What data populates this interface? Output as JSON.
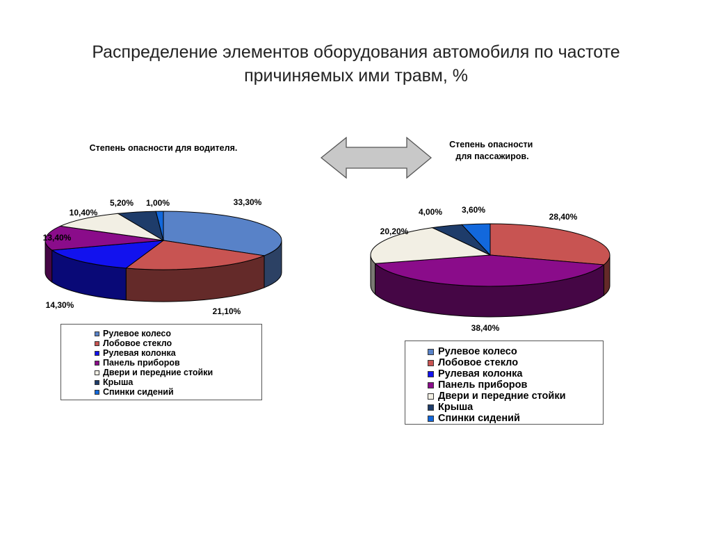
{
  "slide": {
    "title_line1": "Распределение элементов оборудования автомобиля по частоте",
    "title_line2": "причиняемых ими травм, %"
  },
  "chart_data": [
    {
      "type": "pie",
      "title": "Степень опасности для водителя.",
      "categories": [
        "Рулевое колесо",
        "Лобовое стекло",
        "Рулевая колонка",
        "Панель приборов",
        "Двери и передние стойки",
        "Крыша",
        "Спинки сидений"
      ],
      "values": [
        33.3,
        21.1,
        14.3,
        13.4,
        10.4,
        5.2,
        1.0
      ],
      "value_labels": [
        "33,30%",
        "21,10%",
        "14,30%",
        "13,40%",
        "10,40%",
        "5,20%",
        "1,00%"
      ],
      "colors": [
        "#5882c8",
        "#c85452",
        "#1212ee",
        "#8a0c8a",
        "#f2efe4",
        "#1e3c6a",
        "#1268dc"
      ],
      "legend_placement": "bottom",
      "style": "3d"
    },
    {
      "type": "pie",
      "title": "Степень опасности для пассажиров.",
      "categories": [
        "Рулевое колесо",
        "Лобовое стекло",
        "Рулевая колонка",
        "Панель приборов",
        "Двери и передние стойки",
        "Крыша",
        "Спинки сидений"
      ],
      "values": [
        0,
        28.4,
        0,
        38.4,
        20.2,
        4.0,
        3.6
      ],
      "value_labels": [
        "",
        "28,40%",
        "",
        "38,40%",
        "20,20%",
        "4,00%",
        "3,60%"
      ],
      "colors": [
        "#5882c8",
        "#c85452",
        "#1212ee",
        "#8a0c8a",
        "#f2efe4",
        "#1e3c6a",
        "#1268dc"
      ],
      "legend_placement": "bottom",
      "style": "3d"
    }
  ]
}
